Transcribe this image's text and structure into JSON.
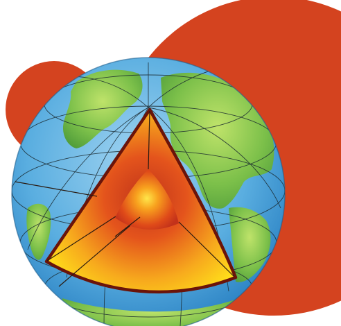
{
  "illustration": {
    "subject": "earth-interior-cutaway",
    "layers": [
      "surface",
      "mantle",
      "outer-core",
      "inner-core"
    ],
    "colors": {
      "background_blob": "#d4431f",
      "ocean": "#5aaee0",
      "land": "#7cc04a",
      "mantle_outer": "#ffe21a",
      "mantle_inner": "#e4541c",
      "core_outer": "#d83a14",
      "core_inner": "#ffcf1e",
      "cut_outline": "#6a140a",
      "grid_lines": "#1b2a30"
    }
  }
}
